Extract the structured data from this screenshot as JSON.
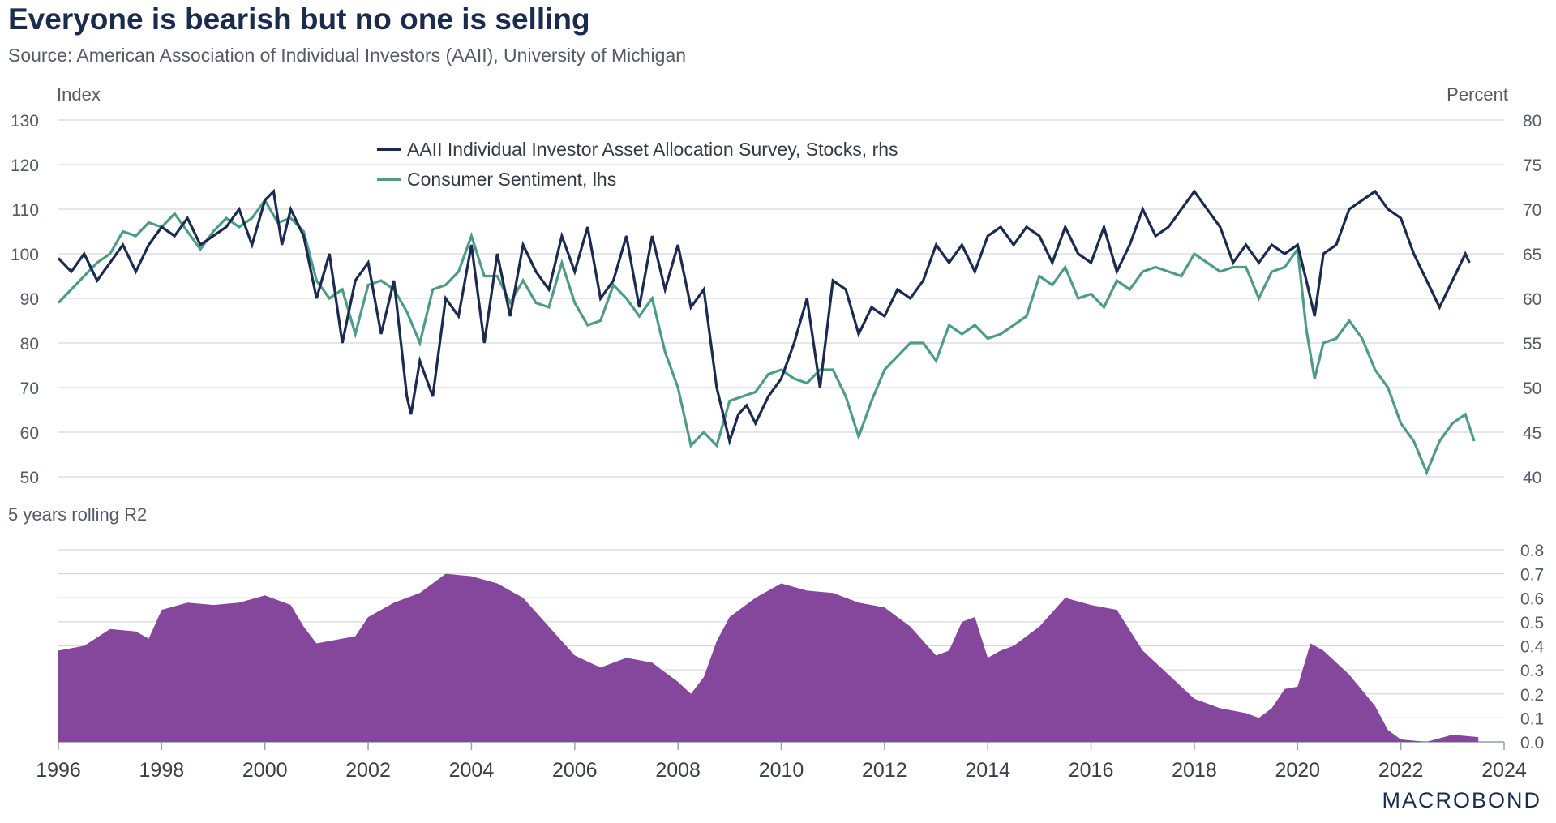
{
  "title": "Everyone is bearish but no one is selling",
  "subtitle": "Source: American Association of Individual Investors (AAII), University of Michigan",
  "logo": "MACROBOND",
  "colors": {
    "aaii": "#1b2a4e",
    "sentiment": "#4e9c86",
    "r2": "#84479b",
    "grid": "#d6d8dc"
  },
  "chart_data": [
    {
      "type": "line",
      "title": "Everyone is bearish but no one is selling",
      "left_axis_label": "Index",
      "right_axis_label": "Percent",
      "left_ylim": [
        50,
        130
      ],
      "right_ylim": [
        40,
        80
      ],
      "left_ticks": [
        "130",
        "120",
        "110",
        "100",
        "90",
        "80",
        "70",
        "60",
        "50"
      ],
      "right_ticks": [
        "80",
        "75",
        "70",
        "65",
        "60",
        "55",
        "50",
        "45",
        "40"
      ],
      "xlim": [
        1996,
        2024
      ],
      "x_ticks": [
        "1996",
        "1998",
        "2000",
        "2002",
        "2004",
        "2006",
        "2008",
        "2010",
        "2012",
        "2014",
        "2016",
        "2018",
        "2020",
        "2022",
        "2024"
      ],
      "grid": true,
      "legend_position": "top-center",
      "series": [
        {
          "name": "AAII Individual Investor Asset Allocation Survey, Stocks, rhs",
          "axis": "right",
          "x": [
            1996.0,
            1996.25,
            1996.5,
            1996.75,
            1997.0,
            1997.25,
            1997.5,
            1997.75,
            1998.0,
            1998.25,
            1998.5,
            1998.75,
            1999.0,
            1999.25,
            1999.5,
            1999.75,
            2000.0,
            2000.17,
            2000.33,
            2000.5,
            2000.75,
            2001.0,
            2001.25,
            2001.5,
            2001.75,
            2002.0,
            2002.25,
            2002.5,
            2002.75,
            2002.83,
            2003.0,
            2003.25,
            2003.5,
            2003.75,
            2004.0,
            2004.25,
            2004.5,
            2004.75,
            2005.0,
            2005.25,
            2005.5,
            2005.75,
            2006.0,
            2006.25,
            2006.5,
            2006.75,
            2007.0,
            2007.25,
            2007.5,
            2007.75,
            2008.0,
            2008.25,
            2008.5,
            2008.75,
            2009.0,
            2009.17,
            2009.33,
            2009.5,
            2009.75,
            2010.0,
            2010.25,
            2010.5,
            2010.75,
            2011.0,
            2011.25,
            2011.5,
            2011.75,
            2012.0,
            2012.25,
            2012.5,
            2012.75,
            2013.0,
            2013.25,
            2013.5,
            2013.75,
            2014.0,
            2014.25,
            2014.5,
            2014.75,
            2015.0,
            2015.25,
            2015.5,
            2015.75,
            2016.0,
            2016.25,
            2016.5,
            2016.75,
            2017.0,
            2017.25,
            2017.5,
            2017.75,
            2018.0,
            2018.25,
            2018.5,
            2018.75,
            2019.0,
            2019.25,
            2019.5,
            2019.75,
            2020.0,
            2020.17,
            2020.33,
            2020.5,
            2020.75,
            2021.0,
            2021.25,
            2021.5,
            2021.75,
            2022.0,
            2022.25,
            2022.5,
            2022.75,
            2023.0,
            2023.25,
            2023.33
          ],
          "values": [
            64.5,
            63,
            65,
            62,
            64,
            66,
            63,
            66,
            68,
            67,
            69,
            66,
            67,
            68,
            70,
            66,
            71,
            72,
            66,
            70,
            67,
            60,
            65,
            55,
            62,
            64,
            56,
            62,
            49,
            47,
            53,
            49,
            60,
            58,
            66,
            55,
            65,
            58,
            66,
            63,
            61,
            67,
            63,
            68,
            60,
            62,
            67,
            59,
            67,
            61,
            66,
            59,
            61,
            50,
            44,
            47,
            48,
            46,
            49,
            51,
            55,
            60,
            50,
            62,
            61,
            56,
            59,
            58,
            61,
            60,
            62,
            66,
            64,
            66,
            63,
            67,
            68,
            66,
            68,
            67,
            64,
            68,
            65,
            64,
            68,
            63,
            66,
            70,
            67,
            68,
            70,
            72,
            70,
            68,
            64,
            66,
            64,
            66,
            65,
            66,
            62,
            58,
            65,
            66,
            70,
            71,
            72,
            70,
            69,
            65,
            62,
            59,
            62,
            65,
            64
          ]
        },
        {
          "name": "Consumer Sentiment, lhs",
          "axis": "left",
          "x": [
            1996.0,
            1996.25,
            1996.5,
            1996.75,
            1997.0,
            1997.25,
            1997.5,
            1997.75,
            1998.0,
            1998.25,
            1998.5,
            1998.75,
            1999.0,
            1999.25,
            1999.5,
            1999.75,
            2000.0,
            2000.25,
            2000.5,
            2000.75,
            2001.0,
            2001.25,
            2001.5,
            2001.75,
            2002.0,
            2002.25,
            2002.5,
            2002.75,
            2003.0,
            2003.25,
            2003.5,
            2003.75,
            2004.0,
            2004.25,
            2004.5,
            2004.75,
            2005.0,
            2005.25,
            2005.5,
            2005.75,
            2006.0,
            2006.25,
            2006.5,
            2006.75,
            2007.0,
            2007.25,
            2007.5,
            2007.75,
            2008.0,
            2008.25,
            2008.5,
            2008.75,
            2009.0,
            2009.25,
            2009.5,
            2009.75,
            2010.0,
            2010.25,
            2010.5,
            2010.75,
            2011.0,
            2011.25,
            2011.5,
            2011.75,
            2012.0,
            2012.25,
            2012.5,
            2012.75,
            2013.0,
            2013.25,
            2013.5,
            2013.75,
            2014.0,
            2014.25,
            2014.5,
            2014.75,
            2015.0,
            2015.25,
            2015.5,
            2015.75,
            2016.0,
            2016.25,
            2016.5,
            2016.75,
            2017.0,
            2017.25,
            2017.5,
            2017.75,
            2018.0,
            2018.25,
            2018.5,
            2018.75,
            2019.0,
            2019.25,
            2019.5,
            2019.75,
            2020.0,
            2020.17,
            2020.33,
            2020.5,
            2020.75,
            2021.0,
            2021.25,
            2021.5,
            2021.75,
            2022.0,
            2022.25,
            2022.5,
            2022.75,
            2023.0,
            2023.25,
            2023.42
          ],
          "values": [
            89,
            92,
            95,
            98,
            100,
            105,
            104,
            107,
            106,
            109,
            105,
            101,
            105,
            108,
            106,
            108,
            112,
            107,
            108,
            105,
            94,
            90,
            92,
            82,
            93,
            94,
            92,
            87,
            80,
            92,
            93,
            96,
            104,
            95,
            95,
            89,
            94,
            89,
            88,
            98,
            89,
            84,
            85,
            93,
            90,
            86,
            90,
            78,
            70,
            57,
            60,
            57,
            67,
            68,
            69,
            73,
            74,
            72,
            71,
            74,
            74,
            68,
            59,
            67,
            74,
            77,
            80,
            80,
            76,
            84,
            82,
            84,
            81,
            82,
            84,
            86,
            95,
            93,
            97,
            90,
            91,
            88,
            94,
            92,
            96,
            97,
            96,
            95,
            100,
            98,
            96,
            97,
            97,
            90,
            96,
            97,
            101,
            83,
            72,
            80,
            81,
            85,
            81,
            74,
            70,
            62,
            58,
            51,
            58,
            62,
            64,
            58
          ]
        }
      ]
    },
    {
      "type": "area",
      "title": "5 years rolling R2",
      "ylim": [
        0.0,
        0.8
      ],
      "y_ticks": [
        "0.8",
        "0.7",
        "0.6",
        "0.5",
        "0.4",
        "0.3",
        "0.2",
        "0.1",
        "0.0"
      ],
      "xlim": [
        1996,
        2024
      ],
      "grid": true,
      "series": [
        {
          "name": "5 years rolling R2",
          "x": [
            1996.0,
            1996.5,
            1997.0,
            1997.5,
            1997.75,
            1998.0,
            1998.5,
            1999.0,
            1999.5,
            2000.0,
            2000.5,
            2000.75,
            2001.0,
            2001.5,
            2001.75,
            2002.0,
            2002.5,
            2003.0,
            2003.5,
            2004.0,
            2004.5,
            2005.0,
            2005.5,
            2006.0,
            2006.5,
            2007.0,
            2007.5,
            2008.0,
            2008.25,
            2008.5,
            2008.75,
            2009.0,
            2009.5,
            2010.0,
            2010.5,
            2011.0,
            2011.5,
            2012.0,
            2012.5,
            2013.0,
            2013.25,
            2013.5,
            2013.75,
            2014.0,
            2014.25,
            2014.5,
            2015.0,
            2015.5,
            2016.0,
            2016.5,
            2017.0,
            2017.5,
            2018.0,
            2018.5,
            2019.0,
            2019.25,
            2019.5,
            2019.75,
            2020.0,
            2020.25,
            2020.5,
            2021.0,
            2021.5,
            2021.75,
            2022.0,
            2022.5,
            2023.0,
            2023.5
          ],
          "values": [
            0.38,
            0.4,
            0.47,
            0.46,
            0.43,
            0.55,
            0.58,
            0.57,
            0.58,
            0.61,
            0.57,
            0.48,
            0.41,
            0.43,
            0.44,
            0.52,
            0.58,
            0.62,
            0.7,
            0.69,
            0.66,
            0.6,
            0.48,
            0.36,
            0.31,
            0.35,
            0.33,
            0.25,
            0.2,
            0.27,
            0.42,
            0.52,
            0.6,
            0.66,
            0.63,
            0.62,
            0.58,
            0.56,
            0.48,
            0.36,
            0.38,
            0.5,
            0.52,
            0.35,
            0.38,
            0.4,
            0.48,
            0.6,
            0.57,
            0.55,
            0.38,
            0.28,
            0.18,
            0.14,
            0.12,
            0.1,
            0.14,
            0.22,
            0.23,
            0.41,
            0.38,
            0.28,
            0.15,
            0.05,
            0.01,
            0.0,
            0.03,
            0.02
          ]
        }
      ]
    }
  ]
}
